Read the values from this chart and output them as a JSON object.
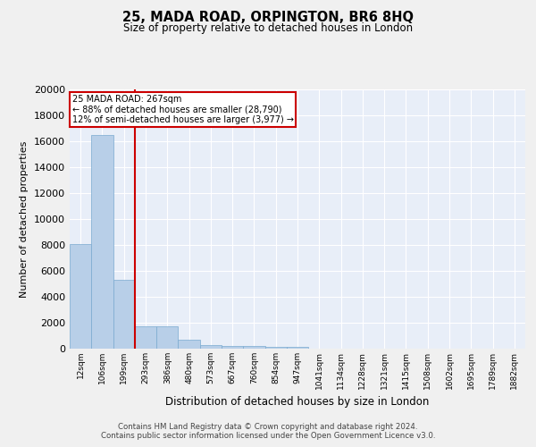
{
  "title": "25, MADA ROAD, ORPINGTON, BR6 8HQ",
  "subtitle": "Size of property relative to detached houses in London",
  "xlabel": "Distribution of detached houses by size in London",
  "ylabel": "Number of detached properties",
  "bar_color": "#b8cfe8",
  "bar_edge_color": "#7aaad0",
  "background_color": "#e8eef8",
  "grid_color": "#ffffff",
  "categories": [
    "12sqm",
    "106sqm",
    "199sqm",
    "293sqm",
    "386sqm",
    "480sqm",
    "573sqm",
    "667sqm",
    "760sqm",
    "854sqm",
    "947sqm",
    "1041sqm",
    "1134sqm",
    "1228sqm",
    "1321sqm",
    "1415sqm",
    "1508sqm",
    "1602sqm",
    "1695sqm",
    "1789sqm",
    "1882sqm"
  ],
  "values": [
    8100,
    16500,
    5300,
    1750,
    1750,
    700,
    300,
    200,
    180,
    160,
    130,
    0,
    0,
    0,
    0,
    0,
    0,
    0,
    0,
    0,
    0
  ],
  "ylim": [
    0,
    20000
  ],
  "yticks": [
    0,
    2000,
    4000,
    6000,
    8000,
    10000,
    12000,
    14000,
    16000,
    18000,
    20000
  ],
  "property_line_x": 2.5,
  "annotation_text": "25 MADA ROAD: 267sqm\n← 88% of detached houses are smaller (28,790)\n12% of semi-detached houses are larger (3,977) →",
  "annotation_box_color": "#ffffff",
  "annotation_border_color": "#cc0000",
  "vline_color": "#cc0000",
  "footer_line1": "Contains HM Land Registry data © Crown copyright and database right 2024.",
  "footer_line2": "Contains public sector information licensed under the Open Government Licence v3.0."
}
